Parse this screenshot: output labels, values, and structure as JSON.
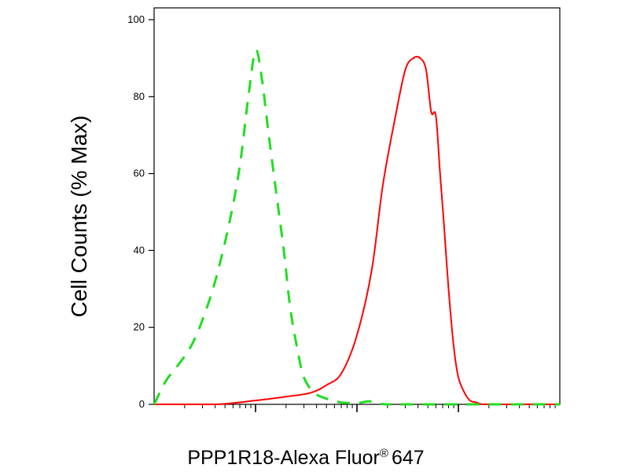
{
  "chart_data": {
    "type": "line",
    "title": "",
    "xlabel": "PPP1R18-Alexa Fluor",
    "xlabel_suffix": "647",
    "xlabel_mark": "®",
    "ylabel": "Cell Counts (% Max)",
    "x_scale": "log",
    "xlim": [
      10000,
      100000000
    ],
    "ylim": [
      0,
      105
    ],
    "yticks": [
      0,
      20,
      40,
      60,
      80,
      100
    ],
    "ytick_labels": [
      "0",
      "20",
      "40",
      "60",
      "80",
      "100"
    ],
    "grid": false,
    "legend": "none",
    "series": [
      {
        "color": "#ff0000",
        "style": "solid",
        "x": [
          10000,
          40000,
          100000,
          200000,
          350000,
          500000,
          700000,
          1000000,
          1400000,
          1800000,
          2400000,
          3000000,
          3600000,
          4200000,
          4800000,
          5400000,
          6000000,
          6600000,
          7200000,
          8000000,
          9000000,
          10000000,
          11500000,
          13000000,
          15000000,
          17000000,
          20000000,
          30000000,
          100000000
        ],
        "values": [
          0,
          0,
          1,
          2,
          3,
          5,
          8,
          18,
          35,
          57,
          75,
          87,
          90,
          90,
          87,
          76,
          75,
          60,
          47,
          30,
          15,
          7,
          3,
          1,
          0.5,
          0,
          0,
          0,
          0
        ]
      },
      {
        "color": "#22dd22",
        "style": "dashed",
        "x": [
          10000,
          13000,
          17000,
          23000,
          30000,
          40000,
          55000,
          70000,
          85000,
          100000,
          115000,
          135000,
          160000,
          190000,
          220000,
          260000,
          300000,
          380000,
          500000,
          700000,
          1000000,
          1300000,
          1600000,
          2000000,
          3000000,
          100000000
        ],
        "values": [
          0,
          6,
          10,
          15,
          22,
          32,
          47,
          62,
          80,
          92,
          85,
          70,
          55,
          40,
          25,
          14,
          7,
          3,
          1.5,
          0.5,
          0.3,
          0.8,
          0.2,
          0,
          0,
          0
        ]
      }
    ]
  },
  "colors": {
    "red": "#ff0000",
    "green": "#22dd22",
    "axis": "#000000"
  }
}
